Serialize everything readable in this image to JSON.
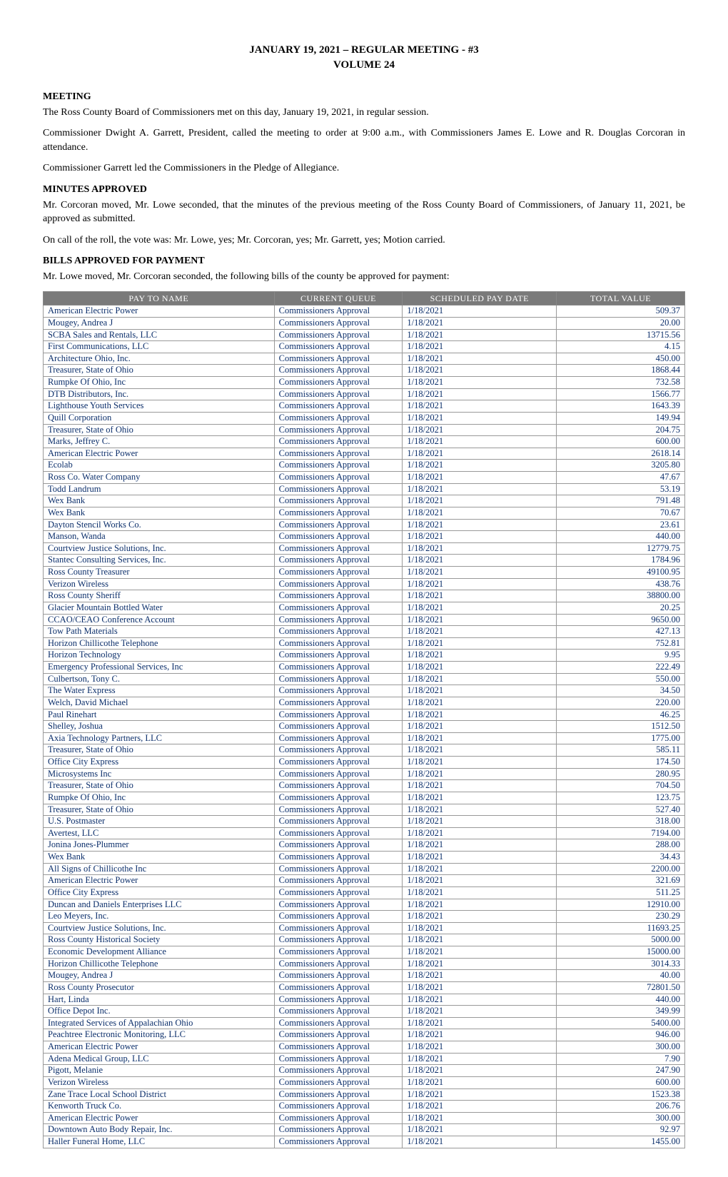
{
  "header": {
    "line1": "JANUARY 19, 2021 – REGULAR MEETING - #3",
    "line2": "VOLUME 24"
  },
  "sections": {
    "meeting": {
      "heading": "MEETING",
      "p1": "The Ross County Board of Commissioners met on this day, January 19, 2021, in regular session.",
      "p2": "Commissioner Dwight A. Garrett, President, called the meeting to order at 9:00 a.m., with Commissioners James E. Lowe and R. Douglas Corcoran in attendance.",
      "p3": "Commissioner Garrett led the Commissioners in the Pledge of Allegiance."
    },
    "minutes": {
      "heading": "MINUTES APPROVED",
      "p1": "Mr. Corcoran moved, Mr. Lowe seconded, that the minutes of the previous meeting of the Ross County Board of Commissioners, of January 11, 2021, be approved as submitted.",
      "p2": "On call of the roll, the vote was:  Mr. Lowe, yes; Mr. Corcoran, yes; Mr. Garrett, yes; Motion carried."
    },
    "bills": {
      "heading": "BILLS APPROVED FOR PAYMENT",
      "p1": "Mr. Lowe moved, Mr. Corcoran seconded, the following bills of the county be approved for payment:"
    }
  },
  "bills_table": {
    "columns": [
      "PAY TO NAME",
      "CURRENT QUEUE",
      "SCHEDULED PAY DATE",
      "TOTAL VALUE"
    ],
    "header_bg": "#7a7a7a",
    "header_fg": "#ffffff",
    "cell_fg": "#0c2f6b",
    "border_color": "#999999",
    "rows": [
      [
        "American Electric Power",
        "Commissioners Approval",
        "1/18/2021",
        "509.37"
      ],
      [
        "Mougey, Andrea J",
        "Commissioners Approval",
        "1/18/2021",
        "20.00"
      ],
      [
        "SCBA Sales and Rentals, LLC",
        "Commissioners Approval",
        "1/18/2021",
        "13715.56"
      ],
      [
        "First Communications, LLC",
        "Commissioners Approval",
        "1/18/2021",
        "4.15"
      ],
      [
        "Architecture Ohio, Inc.",
        "Commissioners Approval",
        "1/18/2021",
        "450.00"
      ],
      [
        "Treasurer, State of Ohio",
        "Commissioners Approval",
        "1/18/2021",
        "1868.44"
      ],
      [
        "Rumpke Of Ohio, Inc",
        "Commissioners Approval",
        "1/18/2021",
        "732.58"
      ],
      [
        "DTB Distributors, Inc.",
        "Commissioners Approval",
        "1/18/2021",
        "1566.77"
      ],
      [
        "Lighthouse Youth Services",
        "Commissioners Approval",
        "1/18/2021",
        "1643.39"
      ],
      [
        "Quill Corporation",
        "Commissioners Approval",
        "1/18/2021",
        "149.94"
      ],
      [
        "Treasurer, State of Ohio",
        "Commissioners Approval",
        "1/18/2021",
        "204.75"
      ],
      [
        "Marks, Jeffrey C.",
        "Commissioners Approval",
        "1/18/2021",
        "600.00"
      ],
      [
        "American Electric Power",
        "Commissioners Approval",
        "1/18/2021",
        "2618.14"
      ],
      [
        "Ecolab",
        "Commissioners Approval",
        "1/18/2021",
        "3205.80"
      ],
      [
        "Ross Co. Water Company",
        "Commissioners Approval",
        "1/18/2021",
        "47.67"
      ],
      [
        "Todd Landrum",
        "Commissioners Approval",
        "1/18/2021",
        "53.19"
      ],
      [
        "Wex Bank",
        "Commissioners Approval",
        "1/18/2021",
        "791.48"
      ],
      [
        "Wex Bank",
        "Commissioners Approval",
        "1/18/2021",
        "70.67"
      ],
      [
        "Dayton Stencil Works Co.",
        "Commissioners Approval",
        "1/18/2021",
        "23.61"
      ],
      [
        "Manson, Wanda",
        "Commissioners Approval",
        "1/18/2021",
        "440.00"
      ],
      [
        "Courtview Justice Solutions, Inc.",
        "Commissioners Approval",
        "1/18/2021",
        "12779.75"
      ],
      [
        "Stantec Consulting Services, Inc.",
        "Commissioners Approval",
        "1/18/2021",
        "1784.96"
      ],
      [
        "Ross County Treasurer",
        "Commissioners Approval",
        "1/18/2021",
        "49100.95"
      ],
      [
        "Verizon Wireless",
        "Commissioners Approval",
        "1/18/2021",
        "438.76"
      ],
      [
        "Ross County Sheriff",
        "Commissioners Approval",
        "1/18/2021",
        "38800.00"
      ],
      [
        "Glacier Mountain Bottled Water",
        "Commissioners Approval",
        "1/18/2021",
        "20.25"
      ],
      [
        "CCAO/CEAO Conference Account",
        "Commissioners Approval",
        "1/18/2021",
        "9650.00"
      ],
      [
        "Tow Path Materials",
        "Commissioners Approval",
        "1/18/2021",
        "427.13"
      ],
      [
        "Horizon Chillicothe Telephone",
        "Commissioners Approval",
        "1/18/2021",
        "752.81"
      ],
      [
        "Horizon Technology",
        "Commissioners Approval",
        "1/18/2021",
        "9.95"
      ],
      [
        "Emergency Professional Services, Inc",
        "Commissioners Approval",
        "1/18/2021",
        "222.49"
      ],
      [
        "Culbertson, Tony C.",
        "Commissioners Approval",
        "1/18/2021",
        "550.00"
      ],
      [
        "The Water Express",
        "Commissioners Approval",
        "1/18/2021",
        "34.50"
      ],
      [
        "Welch, David Michael",
        "Commissioners Approval",
        "1/18/2021",
        "220.00"
      ],
      [
        "Paul Rinehart",
        "Commissioners Approval",
        "1/18/2021",
        "46.25"
      ],
      [
        "Shelley, Joshua",
        "Commissioners Approval",
        "1/18/2021",
        "1512.50"
      ],
      [
        "Axia Technology Partners, LLC",
        "Commissioners Approval",
        "1/18/2021",
        "1775.00"
      ],
      [
        "Treasurer, State of Ohio",
        "Commissioners Approval",
        "1/18/2021",
        "585.11"
      ],
      [
        "Office City Express",
        "Commissioners Approval",
        "1/18/2021",
        "174.50"
      ],
      [
        "Microsystems Inc",
        "Commissioners Approval",
        "1/18/2021",
        "280.95"
      ],
      [
        "Treasurer, State of Ohio",
        "Commissioners Approval",
        "1/18/2021",
        "704.50"
      ],
      [
        "Rumpke Of Ohio, Inc",
        "Commissioners Approval",
        "1/18/2021",
        "123.75"
      ],
      [
        "Treasurer, State of Ohio",
        "Commissioners Approval",
        "1/18/2021",
        "527.40"
      ],
      [
        "U.S. Postmaster",
        "Commissioners Approval",
        "1/18/2021",
        "318.00"
      ],
      [
        "Avertest, LLC",
        "Commissioners Approval",
        "1/18/2021",
        "7194.00"
      ],
      [
        "Jonina Jones-Plummer",
        "Commissioners Approval",
        "1/18/2021",
        "288.00"
      ],
      [
        "Wex Bank",
        "Commissioners Approval",
        "1/18/2021",
        "34.43"
      ],
      [
        "All Signs of Chillicothe Inc",
        "Commissioners Approval",
        "1/18/2021",
        "2200.00"
      ],
      [
        "American Electric Power",
        "Commissioners Approval",
        "1/18/2021",
        "321.69"
      ],
      [
        "Office City Express",
        "Commissioners Approval",
        "1/18/2021",
        "511.25"
      ],
      [
        "Duncan and Daniels Enterprises LLC",
        "Commissioners Approval",
        "1/18/2021",
        "12910.00"
      ],
      [
        "Leo Meyers, Inc.",
        "Commissioners Approval",
        "1/18/2021",
        "230.29"
      ],
      [
        "Courtview Justice Solutions, Inc.",
        "Commissioners Approval",
        "1/18/2021",
        "11693.25"
      ],
      [
        "Ross County Historical Society",
        "Commissioners Approval",
        "1/18/2021",
        "5000.00"
      ],
      [
        "Economic Development Alliance",
        "Commissioners Approval",
        "1/18/2021",
        "15000.00"
      ],
      [
        "Horizon Chillicothe Telephone",
        "Commissioners Approval",
        "1/18/2021",
        "3014.33"
      ],
      [
        "Mougey, Andrea J",
        "Commissioners Approval",
        "1/18/2021",
        "40.00"
      ],
      [
        "Ross County Prosecutor",
        "Commissioners Approval",
        "1/18/2021",
        "72801.50"
      ],
      [
        "Hart, Linda",
        "Commissioners Approval",
        "1/18/2021",
        "440.00"
      ],
      [
        "Office Depot Inc.",
        "Commissioners Approval",
        "1/18/2021",
        "349.99"
      ],
      [
        "Integrated Services of Appalachian Ohio",
        "Commissioners Approval",
        "1/18/2021",
        "5400.00"
      ],
      [
        "Peachtree Electronic Monitoring, LLC",
        "Commissioners Approval",
        "1/18/2021",
        "946.00"
      ],
      [
        "American Electric Power",
        "Commissioners Approval",
        "1/18/2021",
        "300.00"
      ],
      [
        "Adena Medical Group, LLC",
        "Commissioners Approval",
        "1/18/2021",
        "7.90"
      ],
      [
        "Pigott, Melanie",
        "Commissioners Approval",
        "1/18/2021",
        "247.90"
      ],
      [
        "Verizon Wireless",
        "Commissioners Approval",
        "1/18/2021",
        "600.00"
      ],
      [
        "Zane Trace Local School District",
        "Commissioners Approval",
        "1/18/2021",
        "1523.38"
      ],
      [
        "Kenworth Truck Co.",
        "Commissioners Approval",
        "1/18/2021",
        "206.76"
      ],
      [
        "American Electric Power",
        "Commissioners Approval",
        "1/18/2021",
        "300.00"
      ],
      [
        "Downtown Auto Body Repair, Inc.",
        "Commissioners Approval",
        "1/18/2021",
        "92.97"
      ],
      [
        "Haller Funeral Home, LLC",
        "Commissioners Approval",
        "1/18/2021",
        "1455.00"
      ]
    ]
  }
}
